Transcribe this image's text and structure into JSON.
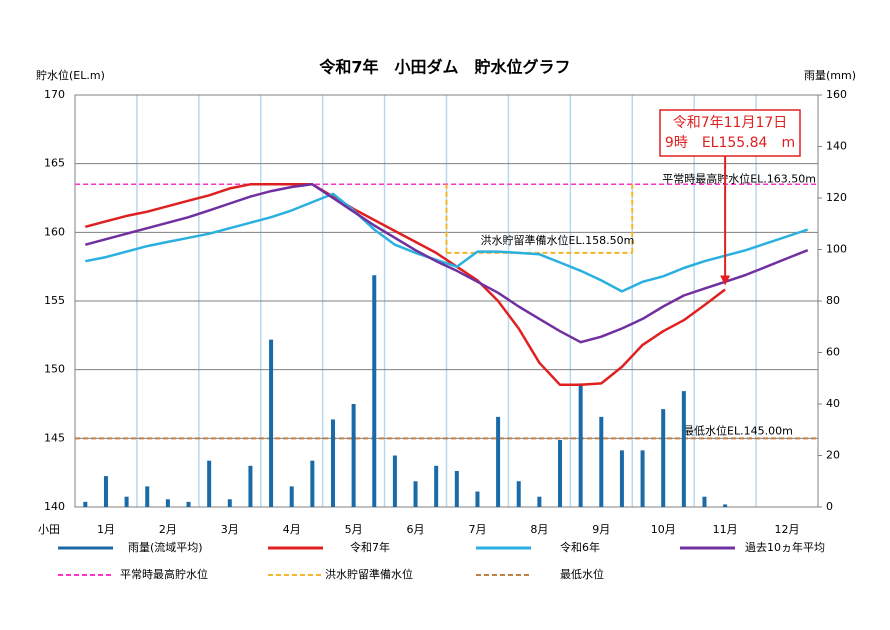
{
  "chart_data": {
    "type": "line",
    "title": "令和7年　小田ダム　貯水位グラフ",
    "y_label": "貯水位(EL.m)",
    "y2_label": "雨量(mm)",
    "x_label": "小田",
    "categories": [
      null,
      "1月",
      null,
      null,
      "2月",
      null,
      null,
      "3月",
      null,
      null,
      "4月",
      null,
      null,
      "5月",
      null,
      null,
      "6月",
      null,
      null,
      "7月",
      null,
      null,
      "8月",
      null,
      null,
      "9月",
      null,
      null,
      "10月",
      null,
      null,
      "11月",
      null,
      null,
      "12月",
      null
    ],
    "ylim": [
      140,
      170
    ],
    "yticks": [
      140,
      145,
      150,
      155,
      160,
      165,
      170
    ],
    "y2lim": [
      0,
      160
    ],
    "y2ticks": [
      0,
      20,
      40,
      60,
      80,
      100,
      120,
      140,
      160
    ],
    "grid": true,
    "series": [
      {
        "name": "雨量(流域平均)",
        "type": "bar",
        "axis": "y2",
        "color": "#1a6aa8",
        "values": [
          2,
          12,
          4,
          8,
          3,
          2,
          18,
          3,
          16,
          65,
          8,
          18,
          34,
          40,
          90,
          20,
          10,
          16,
          14,
          6,
          35,
          10,
          4,
          26,
          48,
          35,
          22,
          22,
          38,
          45,
          4,
          1,
          null,
          null,
          null,
          null
        ]
      },
      {
        "name": "令和7年",
        "type": "line",
        "color": "#e02020",
        "values": [
          160.4,
          160.8,
          161.2,
          161.5,
          161.9,
          162.3,
          162.7,
          163.2,
          163.5,
          163.5,
          163.5,
          163.5,
          162.6,
          161.7,
          160.9,
          160.1,
          159.3,
          158.5,
          157.5,
          156.5,
          155,
          153,
          150.5,
          148.9,
          148.9,
          149,
          150.2,
          151.8,
          152.8,
          153.6,
          154.7,
          155.84,
          null,
          null,
          null,
          null
        ]
      },
      {
        "name": "令和6年",
        "type": "line",
        "color": "#2ab0e0",
        "values": [
          157.9,
          158.2,
          158.6,
          159.0,
          159.3,
          159.6,
          159.9,
          160.3,
          160.7,
          161.1,
          161.6,
          162.2,
          162.8,
          161.6,
          160.2,
          159.1,
          158.5,
          158.0,
          157.5,
          158.6,
          158.6,
          158.5,
          158.4,
          157.8,
          157.2,
          156.5,
          155.7,
          156.4,
          156.8,
          157.4,
          157.9,
          158.3,
          158.7,
          159.2,
          159.7,
          160.2
        ]
      },
      {
        "name": "過去10ヵ年平均",
        "type": "line",
        "color": "#7030a0",
        "values": [
          159.1,
          159.5,
          159.9,
          160.3,
          160.7,
          161.1,
          161.6,
          162.1,
          162.6,
          163.0,
          163.3,
          163.5,
          162.5,
          161.5,
          160.5,
          159.6,
          158.7,
          157.9,
          157.2,
          156.4,
          155.6,
          154.6,
          153.7,
          152.8,
          152.0,
          152.4,
          153.0,
          153.7,
          154.6,
          155.4,
          155.9,
          156.4,
          156.9,
          157.5,
          158.1,
          158.7
        ]
      }
    ],
    "reference_lines": [
      {
        "name": "平常時最高貯水位",
        "value": 163.5,
        "label": "平常時最高貯水位EL.163.50m",
        "color": "#ff33cc"
      },
      {
        "name": "洪水貯留準備水位",
        "value": 158.5,
        "label": "洪水貯留準備水位EL.158.50m",
        "color": "#f5b52a"
      },
      {
        "name": "最低水位",
        "value": 145,
        "label": "最低水位EL.145.00m",
        "color": "#c0804a"
      }
    ],
    "annotation": {
      "lines": [
        "令和7年11月17日",
        "9時　EL155.84　m"
      ],
      "color": "#e02020"
    }
  }
}
